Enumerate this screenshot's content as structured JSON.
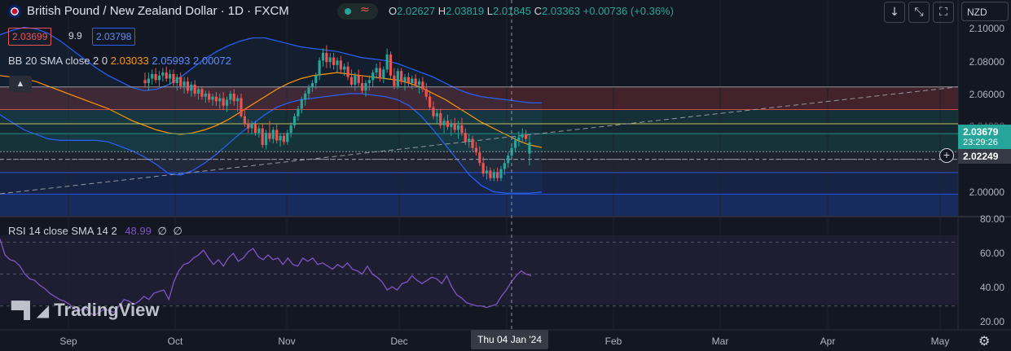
{
  "header": {
    "title": "British Pound / New Zealand Dollar · 1D · FXCM",
    "ohlc": {
      "o_label": "O",
      "o_value": "2.02627",
      "h_label": "H",
      "h_value": "2.03819",
      "l_label": "L",
      "l_value": "2.01845",
      "c_label": "C",
      "c_value": "2.03363",
      "change": "+0.00736 (+0.36%)"
    },
    "status_icon": "≈"
  },
  "bid_ask": {
    "sell": "2.03699",
    "spread": "9.9",
    "buy": "2.03798"
  },
  "bb_legend": {
    "label": "BB 20 SMA close 2 0",
    "basis": "2.03033",
    "upper": "2.05993",
    "lower": "2.00072"
  },
  "rsi_legend": {
    "label": "RSI 14 close SMA 14 2",
    "value": "48.99",
    "v2": "∅",
    "v3": "∅"
  },
  "currency": "NZD",
  "price_axis": {
    "ticks": [
      "2.10000",
      "2.08000",
      "2.06000",
      "2.04000",
      "2.02000",
      "2.00000"
    ],
    "last_price": "2.03679",
    "countdown": "23:29:26",
    "crosshair_price": "2.02249"
  },
  "rsi_axis": {
    "ticks": [
      "80.00",
      "60.00",
      "40.00",
      "20.00"
    ]
  },
  "time_axis": {
    "ticks": [
      "Sep",
      "Oct",
      "Nov",
      "Dec",
      "Feb",
      "Mar",
      "Apr",
      "May"
    ],
    "crosshair_date": "Thu 04 Jan '24"
  },
  "watermark": "TradingView",
  "colors": {
    "background": "#131722",
    "bull": "#26a69a",
    "bear": "#ef5350",
    "bb_basis": "#ff9800",
    "bb_band": "#2962ff",
    "rsi": "#7e57c2",
    "change_positive": "#26a69a"
  },
  "chart_data": {
    "type": "candlestick",
    "symbol": "GBPNZD",
    "ylim": [
      1.985,
      2.113
    ],
    "candles": [
      [
        2.075,
        2.08,
        2.07,
        2.073
      ],
      [
        2.073,
        2.08,
        2.068,
        2.076
      ],
      [
        2.076,
        2.082,
        2.072,
        2.079
      ],
      [
        2.079,
        2.083,
        2.073,
        2.075
      ],
      [
        2.075,
        2.081,
        2.071,
        2.078
      ],
      [
        2.078,
        2.083,
        2.074,
        2.08
      ],
      [
        2.08,
        2.084,
        2.074,
        2.076
      ],
      [
        2.076,
        2.082,
        2.072,
        2.079
      ],
      [
        2.079,
        2.082,
        2.071,
        2.073
      ],
      [
        2.073,
        2.079,
        2.068,
        2.077
      ],
      [
        2.077,
        2.08,
        2.069,
        2.071
      ],
      [
        2.071,
        2.077,
        2.066,
        2.074
      ],
      [
        2.074,
        2.077,
        2.066,
        2.068
      ],
      [
        2.068,
        2.074,
        2.064,
        2.072
      ],
      [
        2.072,
        2.075,
        2.064,
        2.066
      ],
      [
        2.066,
        2.071,
        2.062,
        2.069
      ],
      [
        2.069,
        2.071,
        2.062,
        2.064
      ],
      [
        2.064,
        2.068,
        2.06,
        2.066
      ],
      [
        2.066,
        2.068,
        2.06,
        2.062
      ],
      [
        2.062,
        2.066,
        2.058,
        2.064
      ],
      [
        2.064,
        2.067,
        2.058,
        2.061
      ],
      [
        2.061,
        2.066,
        2.056,
        2.063
      ],
      [
        2.063,
        2.067,
        2.055,
        2.058
      ],
      [
        2.058,
        2.064,
        2.054,
        2.062
      ],
      [
        2.062,
        2.068,
        2.059,
        2.066
      ],
      [
        2.066,
        2.069,
        2.058,
        2.061
      ],
      [
        2.061,
        2.065,
        2.054,
        2.063
      ],
      [
        2.063,
        2.066,
        2.05,
        2.051
      ],
      [
        2.051,
        2.055,
        2.044,
        2.046
      ],
      [
        2.046,
        2.049,
        2.04,
        2.043
      ],
      [
        2.043,
        2.048,
        2.039,
        2.046
      ],
      [
        2.046,
        2.048,
        2.038,
        2.04
      ],
      [
        2.04,
        2.045,
        2.037,
        2.043
      ],
      [
        2.043,
        2.046,
        2.03,
        2.032
      ],
      [
        2.032,
        2.042,
        2.029,
        2.04
      ],
      [
        2.04,
        2.048,
        2.034,
        2.036
      ],
      [
        2.036,
        2.044,
        2.033,
        2.042
      ],
      [
        2.042,
        2.046,
        2.033,
        2.035
      ],
      [
        2.035,
        2.04,
        2.031,
        2.038
      ],
      [
        2.038,
        2.04,
        2.032,
        2.034
      ],
      [
        2.034,
        2.042,
        2.032,
        2.04
      ],
      [
        2.04,
        2.047,
        2.037,
        2.045
      ],
      [
        2.045,
        2.053,
        2.043,
        2.051
      ],
      [
        2.051,
        2.058,
        2.048,
        2.056
      ],
      [
        2.056,
        2.064,
        2.053,
        2.062
      ],
      [
        2.062,
        2.068,
        2.058,
        2.066
      ],
      [
        2.066,
        2.072,
        2.062,
        2.07
      ],
      [
        2.07,
        2.075,
        2.067,
        2.073
      ],
      [
        2.073,
        2.08,
        2.069,
        2.078
      ],
      [
        2.078,
        2.09,
        2.075,
        2.088
      ],
      [
        2.088,
        2.096,
        2.084,
        2.093
      ],
      [
        2.093,
        2.098,
        2.083,
        2.087
      ],
      [
        2.087,
        2.093,
        2.083,
        2.09
      ],
      [
        2.09,
        2.093,
        2.082,
        2.085
      ],
      [
        2.085,
        2.09,
        2.08,
        2.088
      ],
      [
        2.088,
        2.091,
        2.079,
        2.082
      ],
      [
        2.082,
        2.086,
        2.078,
        2.084
      ],
      [
        2.084,
        2.087,
        2.075,
        2.077
      ],
      [
        2.077,
        2.082,
        2.07,
        2.072
      ],
      [
        2.072,
        2.08,
        2.068,
        2.078
      ],
      [
        2.078,
        2.082,
        2.071,
        2.073
      ],
      [
        2.073,
        2.078,
        2.066,
        2.068
      ],
      [
        2.068,
        2.075,
        2.064,
        2.073
      ],
      [
        2.073,
        2.078,
        2.068,
        2.075
      ],
      [
        2.075,
        2.082,
        2.07,
        2.08
      ],
      [
        2.08,
        2.086,
        2.076,
        2.083
      ],
      [
        2.083,
        2.087,
        2.074,
        2.076
      ],
      [
        2.076,
        2.084,
        2.073,
        2.082
      ],
      [
        2.082,
        2.096,
        2.08,
        2.092
      ],
      [
        2.092,
        2.094,
        2.076,
        2.078
      ],
      [
        2.078,
        2.083,
        2.069,
        2.071
      ],
      [
        2.071,
        2.083,
        2.069,
        2.081
      ],
      [
        2.081,
        2.083,
        2.072,
        2.074
      ],
      [
        2.074,
        2.079,
        2.068,
        2.077
      ],
      [
        2.077,
        2.08,
        2.071,
        2.073
      ],
      [
        2.073,
        2.078,
        2.069,
        2.076
      ],
      [
        2.076,
        2.079,
        2.07,
        2.072
      ],
      [
        2.072,
        2.076,
        2.066,
        2.074
      ],
      [
        2.074,
        2.077,
        2.067,
        2.069
      ],
      [
        2.069,
        2.073,
        2.062,
        2.064
      ],
      [
        2.064,
        2.068,
        2.055,
        2.057
      ],
      [
        2.057,
        2.061,
        2.049,
        2.051
      ],
      [
        2.051,
        2.056,
        2.046,
        2.053
      ],
      [
        2.053,
        2.056,
        2.043,
        2.045
      ],
      [
        2.045,
        2.05,
        2.04,
        2.048
      ],
      [
        2.048,
        2.052,
        2.042,
        2.044
      ],
      [
        2.044,
        2.049,
        2.038,
        2.046
      ],
      [
        2.046,
        2.05,
        2.04,
        2.042
      ],
      [
        2.042,
        2.048,
        2.036,
        2.045
      ],
      [
        2.045,
        2.05,
        2.038,
        2.04
      ],
      [
        2.04,
        2.043,
        2.032,
        2.034
      ],
      [
        2.034,
        2.039,
        2.03,
        2.036
      ],
      [
        2.036,
        2.038,
        2.028,
        2.03
      ],
      [
        2.03,
        2.034,
        2.025,
        2.027
      ],
      [
        2.027,
        2.031,
        2.018,
        2.02
      ],
      [
        2.02,
        2.024,
        2.011,
        2.013
      ],
      [
        2.013,
        2.018,
        2.009,
        2.015
      ],
      [
        2.015,
        2.017,
        2.008,
        2.01
      ],
      [
        2.01,
        2.016,
        2.008,
        2.014
      ],
      [
        2.014,
        2.017,
        2.008,
        2.01
      ],
      [
        2.01,
        2.018,
        2.008,
        2.016
      ],
      [
        2.016,
        2.022,
        2.012,
        2.02
      ],
      [
        2.02,
        2.027,
        2.017,
        2.025
      ],
      [
        2.025,
        2.033,
        2.022,
        2.03
      ],
      [
        2.03,
        2.038,
        2.027,
        2.035
      ],
      [
        2.035,
        2.041,
        2.031,
        2.037
      ],
      [
        2.037,
        2.043,
        2.033,
        2.039
      ],
      [
        2.039,
        2.042,
        2.034,
        2.036
      ],
      [
        2.02627,
        2.03819,
        2.01845,
        2.03363
      ]
    ],
    "bollinger": {
      "basis": [
        2.078,
        2.077,
        2.076,
        2.074,
        2.071,
        2.068,
        2.065,
        2.062,
        2.059,
        2.056,
        2.052,
        2.048,
        2.045,
        2.042,
        2.04,
        2.039,
        2.04,
        2.042,
        2.045,
        2.049,
        2.054,
        2.059,
        2.064,
        2.069,
        2.073,
        2.076,
        2.078,
        2.079,
        2.08,
        2.079,
        2.078,
        2.077,
        2.076,
        2.075,
        2.073,
        2.07,
        2.066,
        2.062,
        2.057,
        2.052,
        2.047,
        2.043,
        2.039,
        2.035,
        2.032,
        2.03033
      ],
      "upper": [
        2.105,
        2.108,
        2.11,
        2.109,
        2.106,
        2.101,
        2.095,
        2.089,
        2.083,
        2.078,
        2.074,
        2.07,
        2.068,
        2.069,
        2.072,
        2.077,
        2.083,
        2.089,
        2.094,
        2.098,
        2.101,
        2.103,
        2.103,
        2.101,
        2.099,
        2.097,
        2.096,
        2.095,
        2.094,
        2.092,
        2.09,
        2.089,
        2.088,
        2.086,
        2.083,
        2.08,
        2.077,
        2.073,
        2.069,
        2.066,
        2.064,
        2.063,
        2.062,
        2.061,
        2.06,
        2.05993
      ],
      "lower": [
        2.052,
        2.047,
        2.042,
        2.039,
        2.036,
        2.035,
        2.035,
        2.035,
        2.035,
        2.034,
        2.031,
        2.028,
        2.024,
        2.019,
        2.013,
        2.012,
        2.015,
        2.02,
        2.026,
        2.033,
        2.04,
        2.046,
        2.052,
        2.057,
        2.06,
        2.062,
        2.063,
        2.064,
        2.065,
        2.066,
        2.066,
        2.065,
        2.064,
        2.062,
        2.058,
        2.051,
        2.042,
        2.032,
        2.022,
        2.012,
        2.005,
        2.001,
        2.0,
        2.0,
        2.0,
        2.00072
      ]
    },
    "horizontal_levels": [
      2.0705,
      2.0555,
      2.046,
      2.0395,
      2.0275,
      2.0225,
      2.0137,
      1.9994
    ],
    "trendline": {
      "from": [
        0,
        1.9996
      ],
      "to": [
        1,
        2.0705
      ]
    },
    "rsi": {
      "ylim": [
        15,
        85
      ],
      "levels": [
        70,
        50,
        30
      ],
      "values": [
        72,
        62,
        59,
        58,
        55,
        50,
        47,
        46,
        43,
        41,
        38,
        36,
        34,
        33,
        31,
        28,
        27,
        29,
        26,
        24,
        26,
        28,
        27,
        26,
        30,
        34,
        33,
        31,
        33,
        36,
        34,
        38,
        39,
        40,
        34,
        45,
        52,
        56,
        57,
        60,
        62,
        65,
        60,
        56,
        59,
        55,
        60,
        63,
        58,
        60,
        64,
        66,
        61,
        59,
        62,
        59,
        60,
        56,
        60,
        56,
        55,
        60,
        58,
        60,
        56,
        57,
        55,
        53,
        56,
        54,
        57,
        53,
        52,
        50,
        55,
        50,
        48,
        45,
        40,
        42,
        40,
        44,
        45,
        49,
        46,
        44,
        46,
        48,
        47,
        44,
        49,
        42,
        37,
        35,
        32,
        31,
        30,
        30,
        29,
        30,
        31,
        36,
        40,
        45,
        49,
        52,
        50,
        48.99
      ]
    }
  }
}
